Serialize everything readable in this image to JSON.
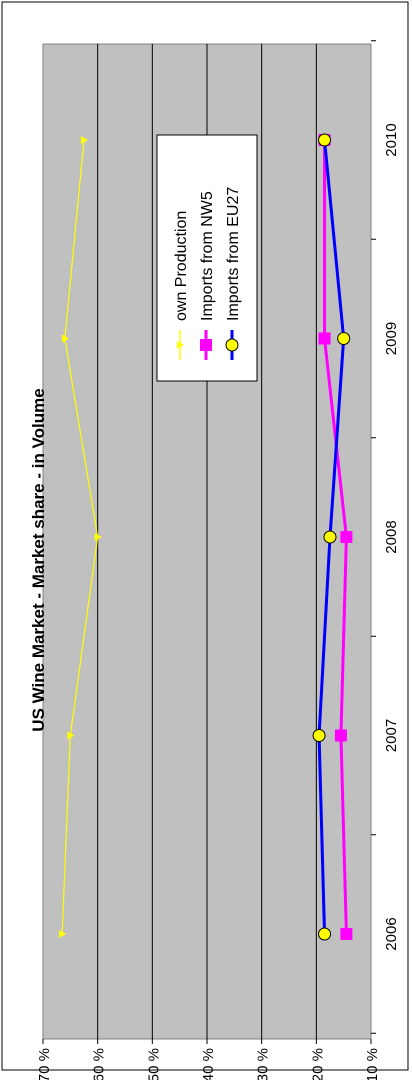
{
  "chart_data": {
    "type": "line",
    "title": "US  Wine Market   -  Market share   -  in Volume",
    "xlabel": "",
    "ylabel": "",
    "categories": [
      "2006",
      "2007",
      "2008",
      "2009",
      "2010"
    ],
    "x": [
      2006,
      2007,
      2008,
      2009,
      2010
    ],
    "x_ticks": [
      "2006",
      "2007",
      "2008",
      "2009",
      "2010"
    ],
    "ylim": [
      10,
      70
    ],
    "y_ticks": [
      "10 %",
      "20 %",
      "30 %",
      "40 %",
      "50 %",
      "60 %",
      "70 %"
    ],
    "y_tick_values": [
      10,
      20,
      30,
      40,
      50,
      60,
      70
    ],
    "grid": true,
    "plot_background": "#c0c0c0",
    "rotated": "90° counter-clockwise",
    "legend_position": "inside, upper area near 2009–2010",
    "series": [
      {
        "name": "own Production",
        "values": [
          66.5,
          65.0,
          60.0,
          66.0,
          62.5
        ],
        "color": "#ffff00",
        "marker": "triangle"
      },
      {
        "name": "Imports from NW5",
        "values": [
          14.5,
          15.5,
          14.5,
          18.5,
          18.5
        ],
        "color": "#ff00ff",
        "marker": "square"
      },
      {
        "name": "Imports from EU27",
        "values": [
          18.5,
          19.5,
          17.5,
          15.0,
          18.5
        ],
        "color": "#0000ff",
        "marker": "circle",
        "marker_fill": "#ffff00"
      }
    ]
  }
}
